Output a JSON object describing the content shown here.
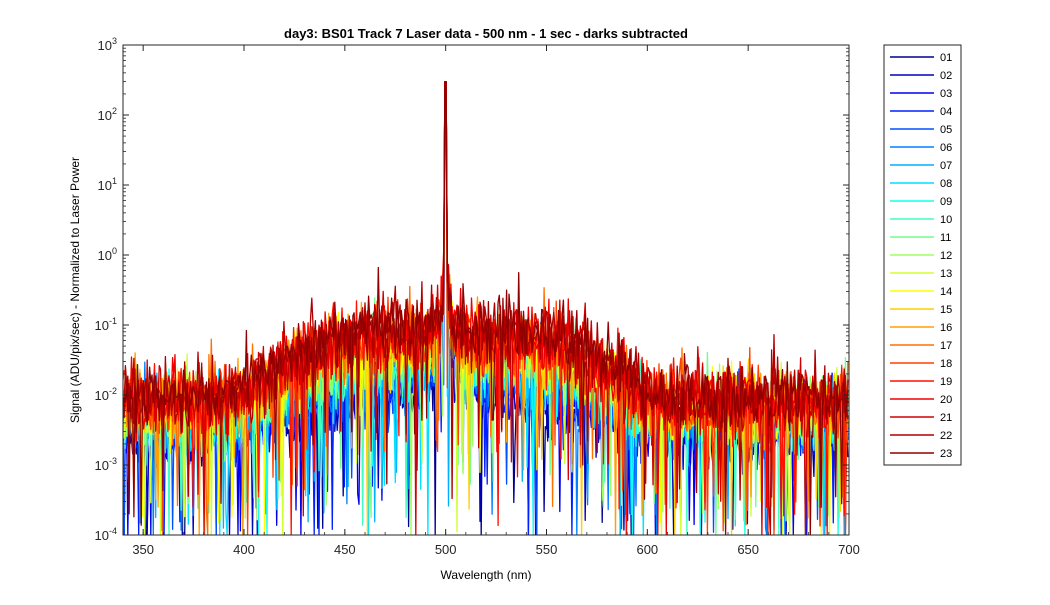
{
  "chart_data": {
    "type": "line",
    "title": "day3: BS01  Track 7 Laser data - 500 nm - 1 sec - darks subtracted",
    "xlabel": "Wavelength (nm)",
    "ylabel": "Signal (ADU/pix/sec) - Normalized to Laser Power",
    "xlim": [
      340,
      700
    ],
    "ylim": [
      0.0001,
      1000
    ],
    "yscale": "log",
    "x_ticks": [
      {
        "value": 350,
        "label": "350"
      },
      {
        "value": 400,
        "label": "400"
      },
      {
        "value": 450,
        "label": "450"
      },
      {
        "value": 500,
        "label": "500"
      },
      {
        "value": 550,
        "label": "550"
      },
      {
        "value": 600,
        "label": "600"
      },
      {
        "value": 650,
        "label": "650"
      },
      {
        "value": 700,
        "label": "700"
      }
    ],
    "y_ticks": [
      {
        "value": 0.0001,
        "base": "10",
        "exp": "-4"
      },
      {
        "value": 0.001,
        "base": "10",
        "exp": "-3"
      },
      {
        "value": 0.01,
        "base": "10",
        "exp": "-2"
      },
      {
        "value": 0.1,
        "base": "10",
        "exp": "-1"
      },
      {
        "value": 1,
        "base": "10",
        "exp": "0"
      },
      {
        "value": 10,
        "base": "10",
        "exp": "1"
      },
      {
        "value": 100,
        "base": "10",
        "exp": "2"
      },
      {
        "value": 1000,
        "base": "10",
        "exp": "3"
      }
    ],
    "grid": false,
    "legend_position": "outside-right",
    "peak": {
      "wavelength": 500,
      "signal": 300
    },
    "series": [
      {
        "name": "01",
        "color": "#00008F",
        "shoulder": 0.006,
        "noise_floor": 0.004
      },
      {
        "name": "02",
        "color": "#0000BF",
        "shoulder": 0.007,
        "noise_floor": 0.0045
      },
      {
        "name": "03",
        "color": "#0000EF",
        "shoulder": 0.008,
        "noise_floor": 0.005
      },
      {
        "name": "04",
        "color": "#0020FF",
        "shoulder": 0.009,
        "noise_floor": 0.0055
      },
      {
        "name": "05",
        "color": "#0050FF",
        "shoulder": 0.01,
        "noise_floor": 0.006
      },
      {
        "name": "06",
        "color": "#0080FF",
        "shoulder": 0.012,
        "noise_floor": 0.0065
      },
      {
        "name": "07",
        "color": "#00B0FF",
        "shoulder": 0.014,
        "noise_floor": 0.007
      },
      {
        "name": "08",
        "color": "#00E0FF",
        "shoulder": 0.016,
        "noise_floor": 0.0075
      },
      {
        "name": "09",
        "color": "#10FFEF",
        "shoulder": 0.018,
        "noise_floor": 0.008
      },
      {
        "name": "10",
        "color": "#40FFBF",
        "shoulder": 0.021,
        "noise_floor": 0.0085
      },
      {
        "name": "11",
        "color": "#70FF8F",
        "shoulder": 0.024,
        "noise_floor": 0.009
      },
      {
        "name": "12",
        "color": "#9FFF60",
        "shoulder": 0.027,
        "noise_floor": 0.0095
      },
      {
        "name": "13",
        "color": "#CFFF30",
        "shoulder": 0.03,
        "noise_floor": 0.01
      },
      {
        "name": "14",
        "color": "#FFFF00",
        "shoulder": 0.034,
        "noise_floor": 0.0105
      },
      {
        "name": "15",
        "color": "#FFCF00",
        "shoulder": 0.038,
        "noise_floor": 0.011
      },
      {
        "name": "16",
        "color": "#FF9F00",
        "shoulder": 0.042,
        "noise_floor": 0.0115
      },
      {
        "name": "17",
        "color": "#FF7000",
        "shoulder": 0.047,
        "noise_floor": 0.012
      },
      {
        "name": "18",
        "color": "#FF4000",
        "shoulder": 0.052,
        "noise_floor": 0.0125
      },
      {
        "name": "19",
        "color": "#FF1000",
        "shoulder": 0.058,
        "noise_floor": 0.013
      },
      {
        "name": "20",
        "color": "#EF0000",
        "shoulder": 0.064,
        "noise_floor": 0.0135
      },
      {
        "name": "21",
        "color": "#D00000",
        "shoulder": 0.07,
        "noise_floor": 0.014
      },
      {
        "name": "22",
        "color": "#B00000",
        "shoulder": 0.077,
        "noise_floor": 0.0145
      },
      {
        "name": "23",
        "color": "#900000",
        "shoulder": 0.085,
        "noise_floor": 0.015
      }
    ]
  }
}
